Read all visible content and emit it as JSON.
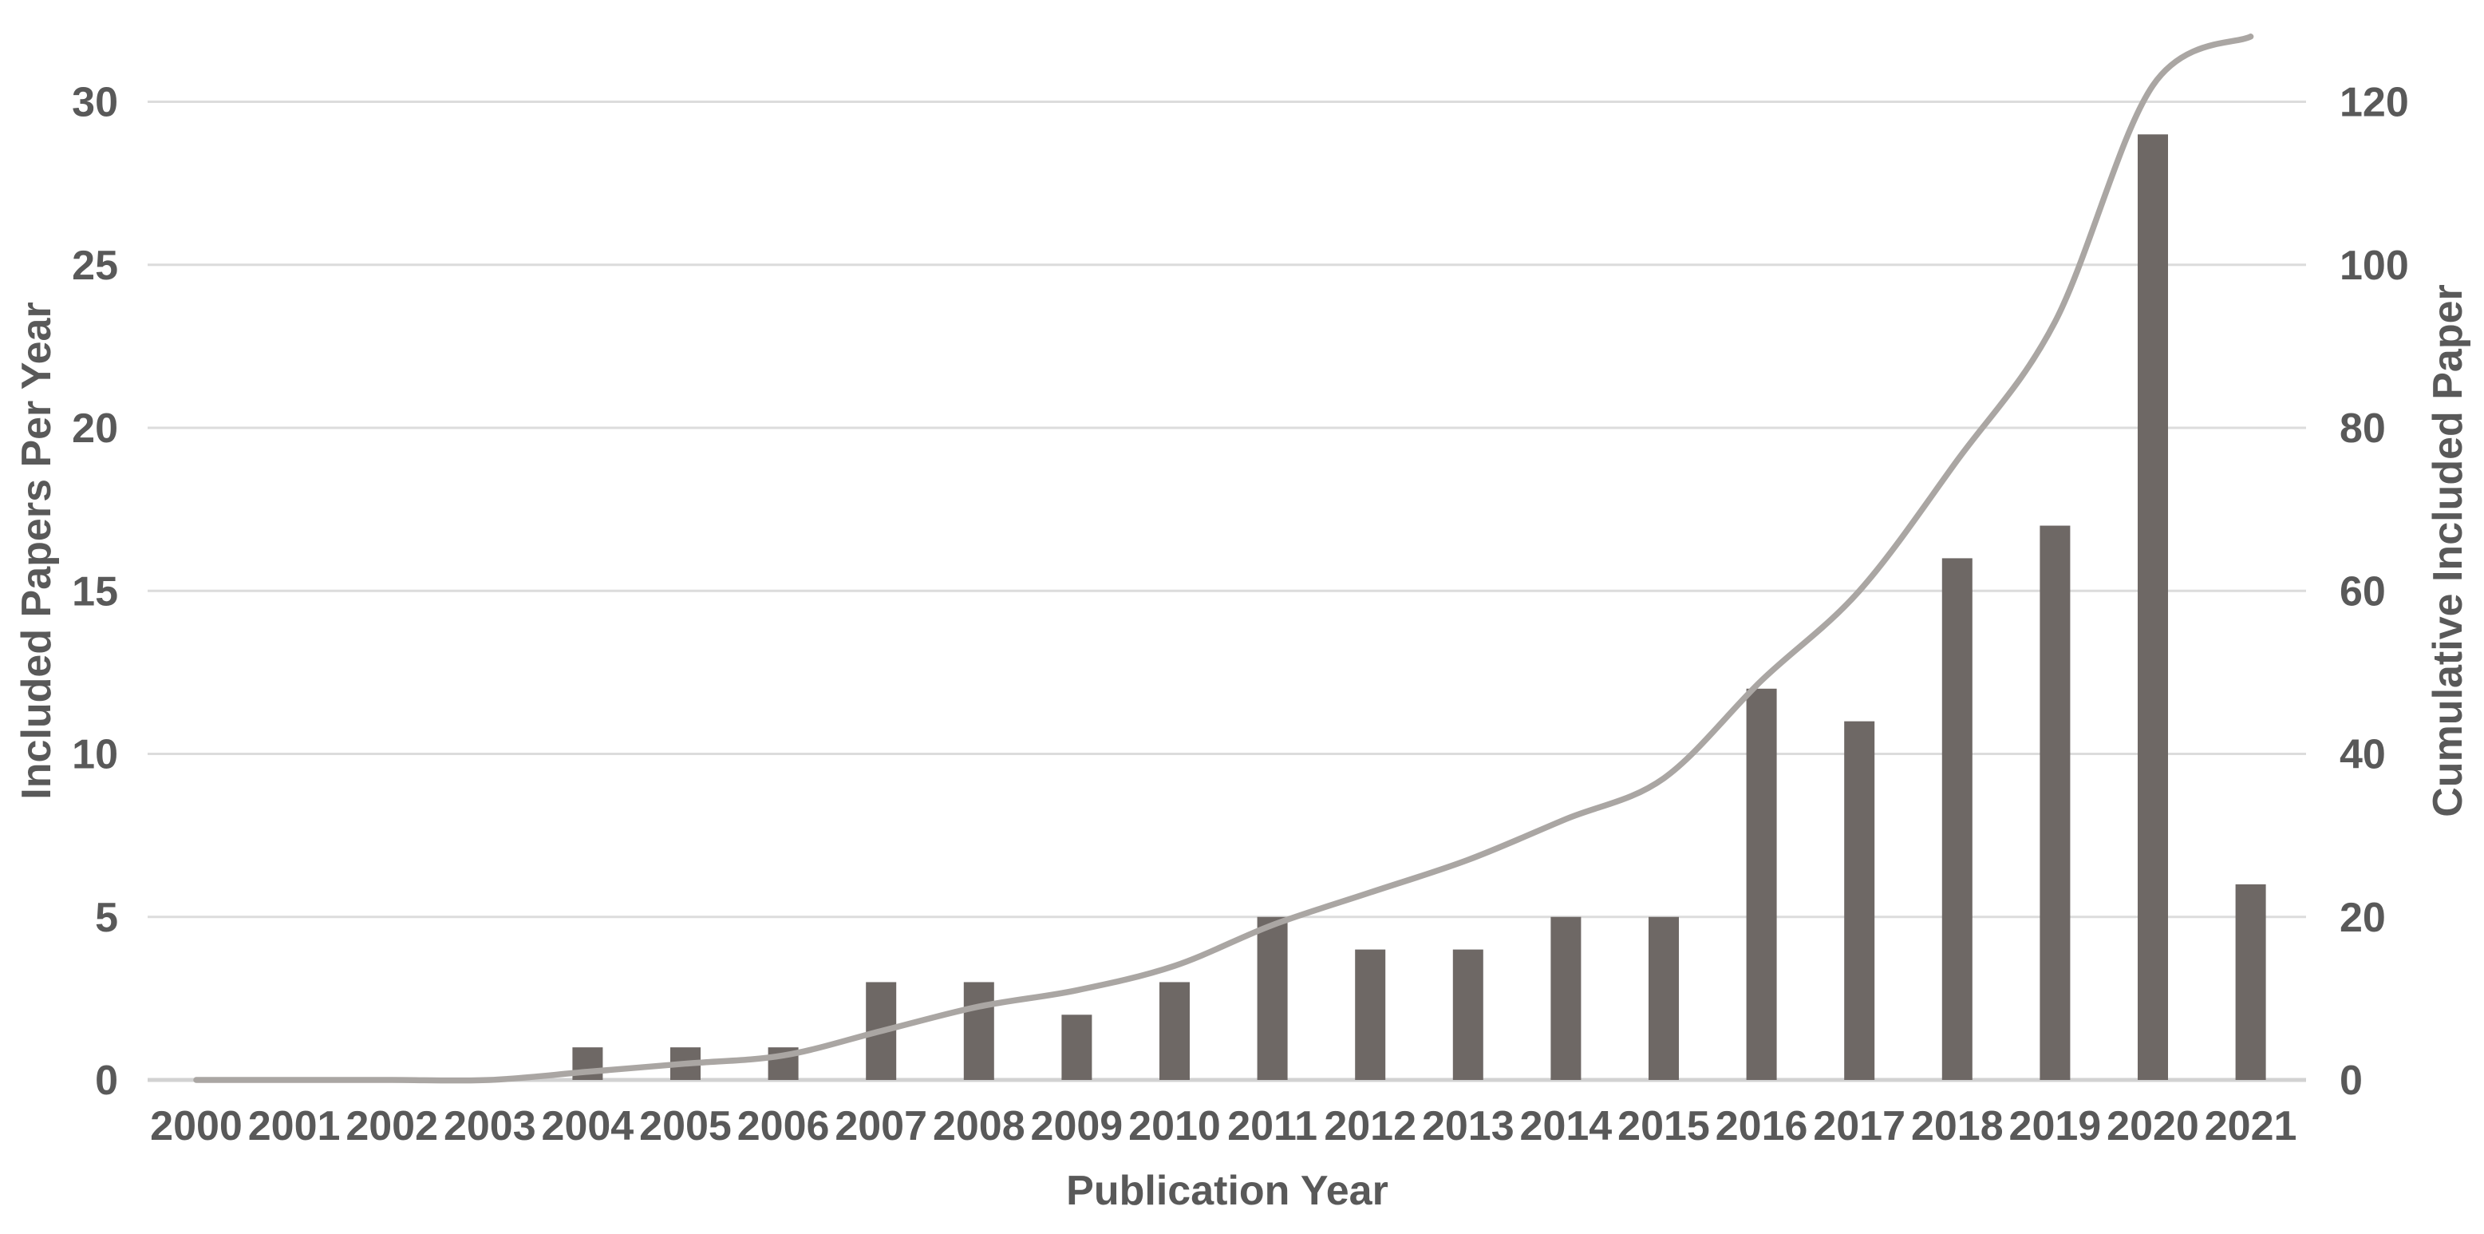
{
  "figure": {
    "x_axis_title": "Publication Year",
    "left_axis_title": "Included Papers Per Year",
    "right_axis_title": "Cumulative Included Paper"
  },
  "chart_data": {
    "type": "bar",
    "combo": [
      "bar",
      "line"
    ],
    "title": "",
    "xlabel": "Publication Year",
    "categories": [
      "2000",
      "2001",
      "2002",
      "2003",
      "2004",
      "2005",
      "2006",
      "2007",
      "2008",
      "2009",
      "2010",
      "2011",
      "2012",
      "2013",
      "2014",
      "2015",
      "2016",
      "2017",
      "2018",
      "2019",
      "2020",
      "2021"
    ],
    "series": [
      {
        "name": "Included Papers Per Year",
        "type": "bar",
        "axis": "left",
        "values": [
          0,
          0,
          0,
          0,
          1,
          1,
          1,
          3,
          3,
          2,
          3,
          5,
          4,
          4,
          5,
          5,
          12,
          11,
          16,
          17,
          29,
          6
        ]
      },
      {
        "name": "Cumulative Included Paper",
        "type": "line",
        "axis": "right",
        "values": [
          0,
          0,
          0,
          0,
          1,
          2,
          3,
          6,
          9,
          11,
          14,
          19,
          23,
          27,
          32,
          37,
          49,
          60,
          76,
          93,
          122,
          128
        ]
      }
    ],
    "left_axis": {
      "title": "Included Papers Per Year",
      "ticks": [
        0,
        5,
        10,
        15,
        20,
        25,
        30
      ],
      "ylim": [
        0,
        32
      ]
    },
    "right_axis": {
      "title": "Cumulative Included Paper",
      "ticks": [
        0,
        20,
        40,
        60,
        80,
        100,
        120
      ],
      "ylim": [
        0,
        128
      ]
    },
    "grid": "horizontal",
    "legend_position": "none",
    "colors": {
      "bar": "#6e6865",
      "line": "#aaa6a3",
      "grid": "#dcdcdc",
      "baseline": "#d2d2d2",
      "text": "#595959",
      "background": "#ffffff"
    }
  }
}
